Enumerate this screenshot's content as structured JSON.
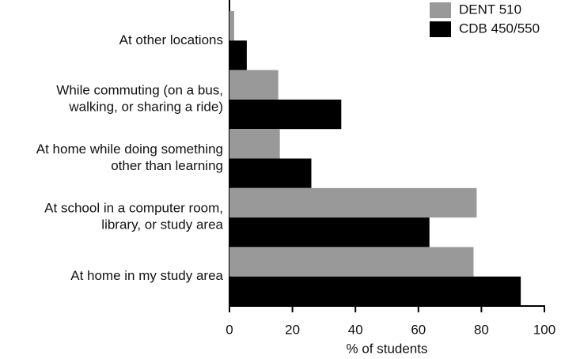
{
  "chart_data": {
    "type": "hbar",
    "x_label": "% of students",
    "categories": [
      "At other locations",
      "While commuting (on a bus,\nwalking, or sharing a ride)",
      "At home while doing something\nother than learning",
      "At school in a computer room,\nlibrary, or study area",
      "At home in my study area"
    ],
    "series": [
      {
        "name": "DENT 510",
        "color": "#999999",
        "values": [
          1.5,
          15.5,
          16,
          78.5,
          77.5
        ]
      },
      {
        "name": "CDB 450/550",
        "color": "#000000",
        "values": [
          5.5,
          35.5,
          26,
          63.5,
          92.5
        ]
      }
    ],
    "xlim": [
      0,
      100
    ],
    "xticks": [
      0,
      20,
      40,
      60,
      80,
      100
    ],
    "legend": "top-right"
  }
}
